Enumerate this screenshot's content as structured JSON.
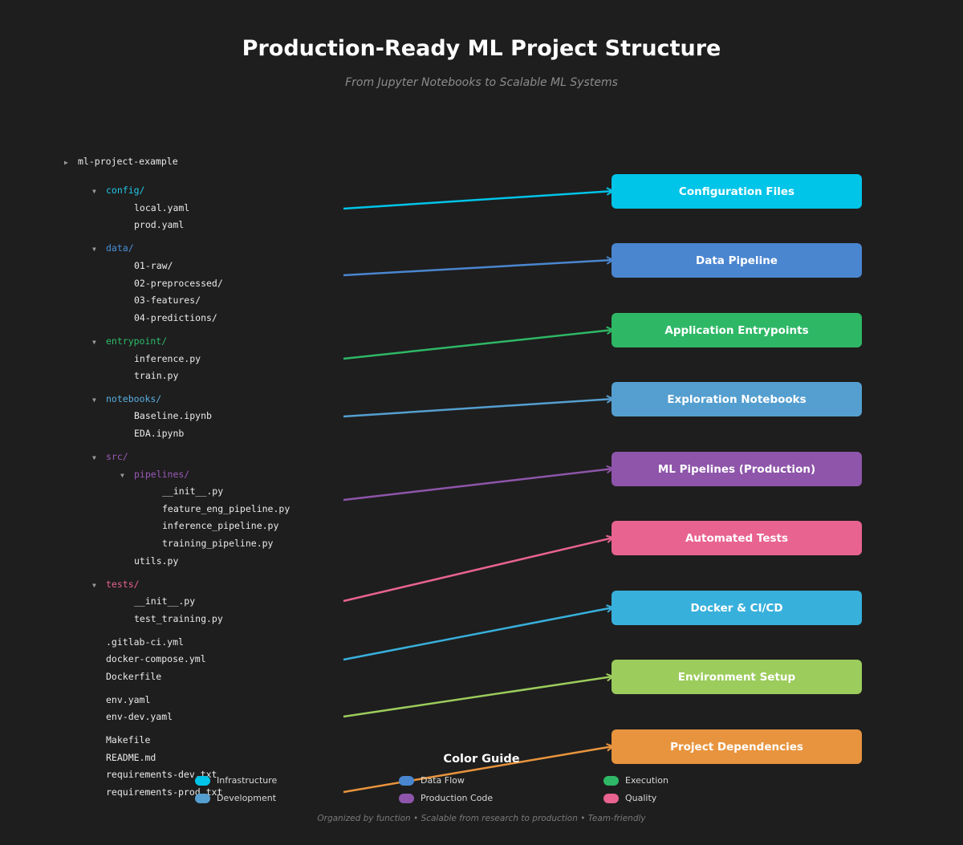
{
  "header": {
    "title": "Production-Ready ML Project Structure",
    "subtitle": "From Jupyter Notebooks to Scalable ML Systems"
  },
  "tree": [
    {
      "text": "ml-project-example",
      "depth": 0,
      "folder": true,
      "color": "#eaeaea"
    },
    {
      "text": "config/",
      "depth": 1,
      "folder": true,
      "color": "#1ec8e8"
    },
    {
      "text": "local.yaml",
      "depth": 2,
      "folder": false
    },
    {
      "text": "prod.yaml",
      "depth": 2,
      "folder": false
    },
    {
      "text": "data/",
      "depth": 1,
      "folder": true,
      "color": "#4a90d9"
    },
    {
      "text": "01-raw/",
      "depth": 2,
      "folder": false
    },
    {
      "text": "02-preprocessed/",
      "depth": 2,
      "folder": false
    },
    {
      "text": "03-features/",
      "depth": 2,
      "folder": false
    },
    {
      "text": "04-predictions/",
      "depth": 2,
      "folder": false
    },
    {
      "text": "entrypoint/",
      "depth": 1,
      "folder": true,
      "color": "#2ebd6b"
    },
    {
      "text": "inference.py",
      "depth": 2,
      "folder": false
    },
    {
      "text": "train.py",
      "depth": 2,
      "folder": false
    },
    {
      "text": "notebooks/",
      "depth": 1,
      "folder": true,
      "color": "#5aaee0"
    },
    {
      "text": "Baseline.ipynb",
      "depth": 2,
      "folder": false
    },
    {
      "text": "EDA.ipynb",
      "depth": 2,
      "folder": false
    },
    {
      "text": "src/",
      "depth": 1,
      "folder": true,
      "color": "#9b59b6"
    },
    {
      "text": "pipelines/",
      "depth": 2,
      "folder": true,
      "color": "#9b59b6"
    },
    {
      "text": "__init__.py",
      "depth": 3,
      "folder": false
    },
    {
      "text": "feature_eng_pipeline.py",
      "depth": 3,
      "folder": false
    },
    {
      "text": "inference_pipeline.py",
      "depth": 3,
      "folder": false
    },
    {
      "text": "training_pipeline.py",
      "depth": 3,
      "folder": false
    },
    {
      "text": "utils.py",
      "depth": 2,
      "folder": false
    },
    {
      "text": "tests/",
      "depth": 1,
      "folder": true,
      "color": "#e8628f"
    },
    {
      "text": "__init__.py",
      "depth": 2,
      "folder": false
    },
    {
      "text": "test_training.py",
      "depth": 2,
      "folder": false
    },
    {
      "text": ".gitlab-ci.yml",
      "depth": 1,
      "folder": false
    },
    {
      "text": "docker-compose.yml",
      "depth": 1,
      "folder": false
    },
    {
      "text": "Dockerfile",
      "depth": 1,
      "folder": false
    },
    {
      "text": "env.yaml",
      "depth": 1,
      "folder": false
    },
    {
      "text": "env-dev.yaml",
      "depth": 1,
      "folder": false
    },
    {
      "text": "Makefile",
      "depth": 1,
      "folder": false
    },
    {
      "text": "README.md",
      "depth": 1,
      "folder": false
    },
    {
      "text": "requirements-dev.txt",
      "depth": 1,
      "folder": false
    },
    {
      "text": "requirements-prod.txt",
      "depth": 1,
      "folder": false
    }
  ],
  "categories": [
    {
      "label": "Configuration Files",
      "color": "#00c4e8"
    },
    {
      "label": "Data Pipeline",
      "color": "#4a86d0"
    },
    {
      "label": "Application Entrypoints",
      "color": "#2eb866"
    },
    {
      "label": "Exploration Notebooks",
      "color": "#559fd0"
    },
    {
      "label": "ML Pipelines (Production)",
      "color": "#8e55aa"
    },
    {
      "label": "Automated Tests",
      "color": "#e86390"
    },
    {
      "label": "Docker & CI/CD",
      "color": "#38b0dc"
    },
    {
      "label": "Environment Setup",
      "color": "#9ccc5c"
    },
    {
      "label": "Project Dependencies",
      "color": "#e8943e"
    }
  ],
  "legend": {
    "title": "Color Guide",
    "items": [
      {
        "label": "Infrastructure",
        "color": "#00c4e8"
      },
      {
        "label": "Data Flow",
        "color": "#4a86d0"
      },
      {
        "label": "Execution",
        "color": "#2eb866"
      },
      {
        "label": "Development",
        "color": "#559fd0"
      },
      {
        "label": "Production Code",
        "color": "#8e55aa"
      },
      {
        "label": "Quality",
        "color": "#e86390"
      }
    ]
  },
  "footer": "Organized by function • Scalable from research to production • Team-friendly"
}
